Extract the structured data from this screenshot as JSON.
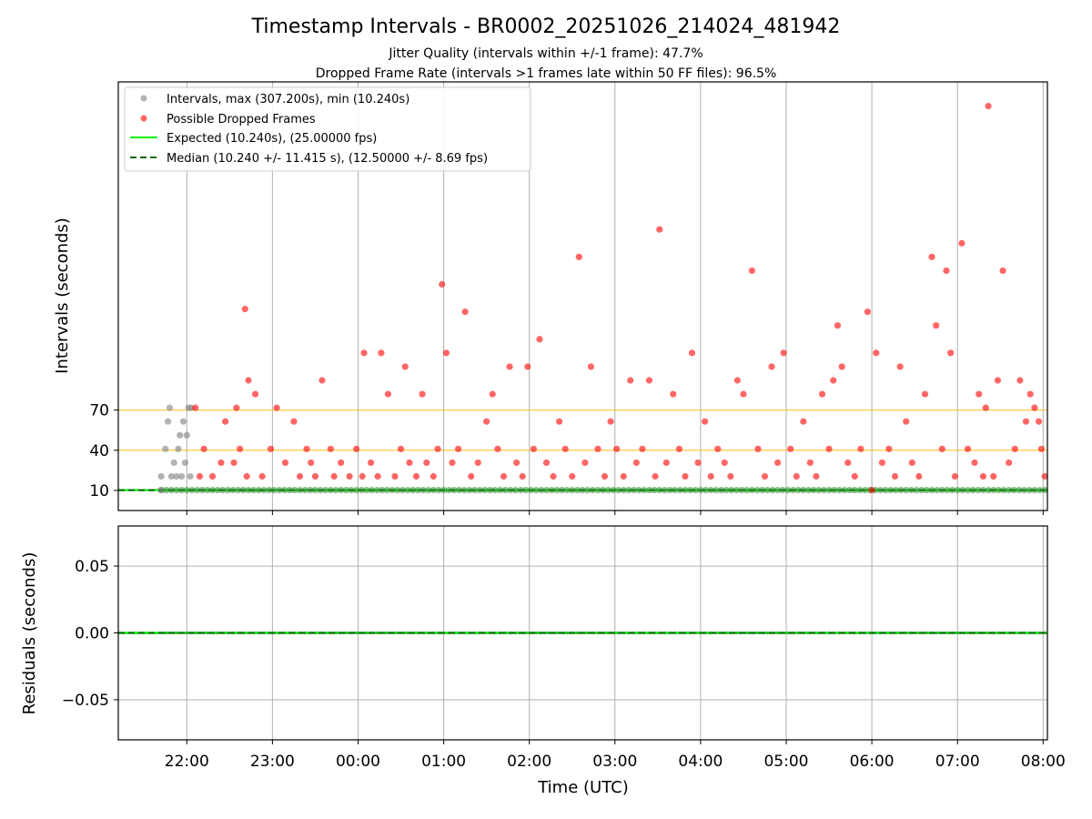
{
  "title": "Timestamp Intervals - BR0002_20251026_214024_481942",
  "subtitle_line1": "Jitter Quality (intervals within +/-1 frame): 47.7%",
  "subtitle_line2": "Dropped Frame Rate (intervals >1 frames late within 50 FF files): 96.5%",
  "colors": {
    "intervals": "#808080",
    "dropped": "#ff0000",
    "expected": "#00ee00",
    "median": "#006400",
    "threshold": "#ffb000",
    "grid": "#b0b0b0"
  },
  "chart_data": [
    {
      "type": "scatter",
      "panel": "intervals",
      "ylabel": "Intervals (seconds)",
      "xlabel": "",
      "x_unit": "hours since 00:00 UTC",
      "xlim": [
        -2.8,
        8.05
      ],
      "ylim": [
        -5,
        315
      ],
      "yticks": [
        10,
        40,
        70
      ],
      "xtick_positions": [
        -2,
        -1,
        0,
        1,
        2,
        3,
        4,
        5,
        6,
        7,
        8
      ],
      "xtick_labels": [
        "22:00",
        "23:00",
        "00:00",
        "01:00",
        "02:00",
        "03:00",
        "04:00",
        "05:00",
        "06:00",
        "07:00",
        "08:00"
      ],
      "threshold_lines": [
        40,
        70
      ],
      "expected_line": 10.24,
      "median_line": 10.24,
      "legend": [
        "Intervals, max (307.200s), min (10.240s)",
        "Possible Dropped Frames",
        "Expected (10.240s), (25.00000 fps)",
        "Median (10.240 +/- 11.415 s), (12.50000 +/- 8.69 fps)"
      ],
      "series": [
        {
          "name": "Intervals",
          "points": [
            [
              -2.3,
              10.24
            ],
            [
              -2.3,
              20.48
            ],
            [
              -2.25,
              40.96
            ],
            [
              -2.22,
              61.44
            ],
            [
              -2.2,
              71.68
            ],
            [
              -2.18,
              20.48
            ],
            [
              -2.15,
              30.72
            ],
            [
              -2.12,
              20.48
            ],
            [
              -2.1,
              40.96
            ],
            [
              -2.08,
              51.2
            ],
            [
              -2.06,
              20.48
            ],
            [
              -2.04,
              61.44
            ],
            [
              -2.02,
              30.72
            ],
            [
              -2.0,
              51.2
            ],
            [
              -1.98,
              71.68
            ],
            [
              -1.96,
              20.48
            ],
            [
              -1.95,
              71.68
            ]
          ]
        },
        {
          "name": "Possible Dropped Frames",
          "points": [
            [
              -1.9,
              71.68
            ],
            [
              -1.85,
              20.48
            ],
            [
              -1.8,
              40.96
            ],
            [
              -1.7,
              20.48
            ],
            [
              -1.6,
              30.72
            ],
            [
              -1.55,
              61.44
            ],
            [
              -1.45,
              30.72
            ],
            [
              -1.42,
              71.68
            ],
            [
              -1.38,
              40.96
            ],
            [
              -1.32,
              145.4
            ],
            [
              -1.3,
              20.48
            ],
            [
              -1.28,
              92.16
            ],
            [
              -1.2,
              81.92
            ],
            [
              -1.12,
              20.48
            ],
            [
              -1.02,
              40.96
            ],
            [
              -0.95,
              71.68
            ],
            [
              -0.85,
              30.72
            ],
            [
              -0.75,
              61.44
            ],
            [
              -0.68,
              20.48
            ],
            [
              -0.6,
              40.96
            ],
            [
              -0.55,
              30.72
            ],
            [
              -0.5,
              20.48
            ],
            [
              -0.42,
              92.16
            ],
            [
              -0.32,
              40.96
            ],
            [
              -0.28,
              20.48
            ],
            [
              -0.2,
              30.72
            ],
            [
              -0.1,
              20.48
            ],
            [
              -0.02,
              40.96
            ],
            [
              0.05,
              20.48
            ],
            [
              0.07,
              112.64
            ],
            [
              0.15,
              30.72
            ],
            [
              0.23,
              20.48
            ],
            [
              0.27,
              112.64
            ],
            [
              0.35,
              81.92
            ],
            [
              0.43,
              20.48
            ],
            [
              0.5,
              40.96
            ],
            [
              0.55,
              102.4
            ],
            [
              0.6,
              30.72
            ],
            [
              0.68,
              20.48
            ],
            [
              0.75,
              81.92
            ],
            [
              0.8,
              30.72
            ],
            [
              0.88,
              20.48
            ],
            [
              0.93,
              40.96
            ],
            [
              0.98,
              163.84
            ],
            [
              1.03,
              112.64
            ],
            [
              1.1,
              30.72
            ],
            [
              1.17,
              40.96
            ],
            [
              1.25,
              143.36
            ],
            [
              1.32,
              20.48
            ],
            [
              1.4,
              30.72
            ],
            [
              1.5,
              61.44
            ],
            [
              1.57,
              81.92
            ],
            [
              1.63,
              40.96
            ],
            [
              1.7,
              20.48
            ],
            [
              1.77,
              102.4
            ],
            [
              1.85,
              30.72
            ],
            [
              1.92,
              20.48
            ],
            [
              1.98,
              102.4
            ],
            [
              2.05,
              40.96
            ],
            [
              2.12,
              122.88
            ],
            [
              2.2,
              30.72
            ],
            [
              2.28,
              20.48
            ],
            [
              2.35,
              61.44
            ],
            [
              2.42,
              40.96
            ],
            [
              2.5,
              20.48
            ],
            [
              2.58,
              184.32
            ],
            [
              2.65,
              30.72
            ],
            [
              2.72,
              102.4
            ],
            [
              2.8,
              40.96
            ],
            [
              2.88,
              20.48
            ],
            [
              2.95,
              61.44
            ],
            [
              3.02,
              40.96
            ],
            [
              3.1,
              20.48
            ],
            [
              3.18,
              92.16
            ],
            [
              3.25,
              30.72
            ],
            [
              3.32,
              40.96
            ],
            [
              3.4,
              92.16
            ],
            [
              3.47,
              20.48
            ],
            [
              3.52,
              204.8
            ],
            [
              3.6,
              30.72
            ],
            [
              3.68,
              81.92
            ],
            [
              3.75,
              40.96
            ],
            [
              3.82,
              20.48
            ],
            [
              3.9,
              112.64
            ],
            [
              3.97,
              30.72
            ],
            [
              4.05,
              61.44
            ],
            [
              4.12,
              20.48
            ],
            [
              4.2,
              40.96
            ],
            [
              4.28,
              30.72
            ],
            [
              4.35,
              20.48
            ],
            [
              4.43,
              92.16
            ],
            [
              4.5,
              81.92
            ],
            [
              4.6,
              174.08
            ],
            [
              4.67,
              40.96
            ],
            [
              4.75,
              20.48
            ],
            [
              4.83,
              102.4
            ],
            [
              4.9,
              30.72
            ],
            [
              4.97,
              112.64
            ],
            [
              5.05,
              40.96
            ],
            [
              5.12,
              20.48
            ],
            [
              5.2,
              61.44
            ],
            [
              5.28,
              30.72
            ],
            [
              5.35,
              20.48
            ],
            [
              5.42,
              81.92
            ],
            [
              5.5,
              40.96
            ],
            [
              5.55,
              92.16
            ],
            [
              5.6,
              133.12
            ],
            [
              5.65,
              102.4
            ],
            [
              5.72,
              30.72
            ],
            [
              5.8,
              20.48
            ],
            [
              5.87,
              40.96
            ],
            [
              5.95,
              143.36
            ],
            [
              6.0,
              10.24
            ],
            [
              6.05,
              112.64
            ],
            [
              6.12,
              30.72
            ],
            [
              6.2,
              40.96
            ],
            [
              6.27,
              20.48
            ],
            [
              6.33,
              102.4
            ],
            [
              6.4,
              61.44
            ],
            [
              6.47,
              30.72
            ],
            [
              6.55,
              20.48
            ],
            [
              6.62,
              81.92
            ],
            [
              6.7,
              184.32
            ],
            [
              6.75,
              133.12
            ],
            [
              6.82,
              40.96
            ],
            [
              6.87,
              174.08
            ],
            [
              6.92,
              112.64
            ],
            [
              6.97,
              20.48
            ],
            [
              7.05,
              194.56
            ],
            [
              7.12,
              40.96
            ],
            [
              7.2,
              30.72
            ],
            [
              7.25,
              81.92
            ],
            [
              7.3,
              20.48
            ],
            [
              7.33,
              71.68
            ],
            [
              7.36,
              296.96
            ],
            [
              7.42,
              20.48
            ],
            [
              7.47,
              92.16
            ],
            [
              7.53,
              174.08
            ],
            [
              7.6,
              30.72
            ],
            [
              7.67,
              40.96
            ],
            [
              7.73,
              92.16
            ],
            [
              7.8,
              61.44
            ],
            [
              7.85,
              81.92
            ],
            [
              7.9,
              71.68
            ],
            [
              7.95,
              61.44
            ],
            [
              7.98,
              40.96
            ],
            [
              8.02,
              20.48
            ]
          ]
        }
      ]
    },
    {
      "type": "scatter",
      "panel": "residuals",
      "ylabel": "Residuals (seconds)",
      "xlabel": "Time (UTC)",
      "x_unit": "hours since 00:00 UTC",
      "xlim": [
        -2.8,
        8.05
      ],
      "ylim": [
        -0.08,
        0.08
      ],
      "yticks": [
        -0.05,
        0.0,
        0.05
      ],
      "ytick_labels": [
        "−0.05",
        "0.00",
        "0.05"
      ],
      "xtick_positions": [
        -2,
        -1,
        0,
        1,
        2,
        3,
        4,
        5,
        6,
        7,
        8
      ],
      "xtick_labels": [
        "22:00",
        "23:00",
        "00:00",
        "01:00",
        "02:00",
        "03:00",
        "04:00",
        "05:00",
        "06:00",
        "07:00",
        "08:00"
      ],
      "residual_value": 0.0
    }
  ]
}
